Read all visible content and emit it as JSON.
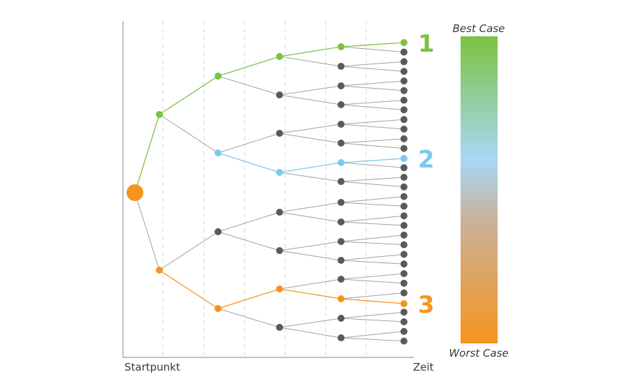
{
  "labels": {
    "start": "Startpunkt",
    "time": "Zeit",
    "best_case": "Best Case",
    "worst_case": "Worst Case"
  },
  "outcomes": [
    {
      "label": "1",
      "color": "#7dc242"
    },
    {
      "label": "2",
      "color": "#7fc8ef"
    },
    {
      "label": "3",
      "color": "#f7941d"
    }
  ],
  "colors": {
    "start_node": "#f7941d",
    "gray_node": "#5a5a5a",
    "gray_edge": "#a0a0a0",
    "best_path": "#7dc242",
    "middle_path": "#7fc8ef",
    "worst_path": "#f7941d",
    "scale_top": "#7dc242",
    "scale_mid": "#a7d8f5",
    "scale_bottom": "#f7941d"
  }
}
